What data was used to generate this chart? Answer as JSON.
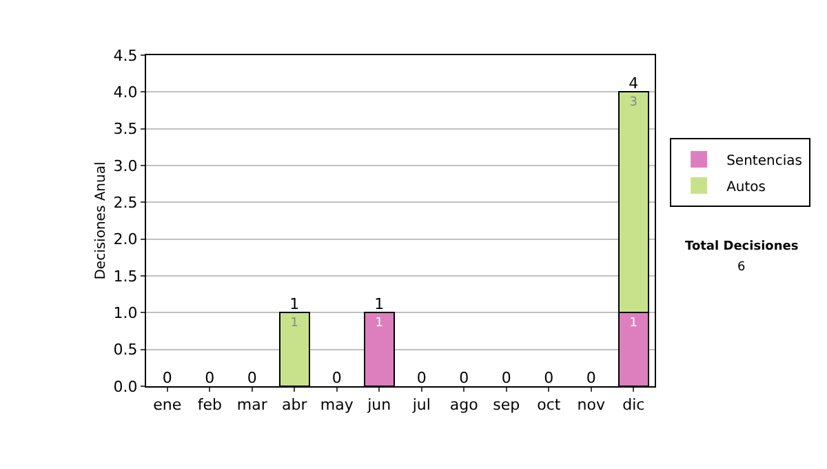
{
  "chart_data": {
    "type": "bar",
    "stacked": true,
    "ylabel": "Decisiones Anual",
    "categories": [
      "ene",
      "feb",
      "mar",
      "abr",
      "may",
      "jun",
      "jul",
      "ago",
      "sep",
      "oct",
      "nov",
      "dic"
    ],
    "series": [
      {
        "name": "Sentencias",
        "color": "#dd7fbf",
        "values": [
          0,
          0,
          0,
          0,
          0,
          1,
          0,
          0,
          0,
          0,
          0,
          1
        ],
        "value_labels": [
          null,
          null,
          null,
          null,
          null,
          "1",
          null,
          null,
          null,
          null,
          null,
          "1"
        ]
      },
      {
        "name": "Autos",
        "color": "#c8e28c",
        "values": [
          0,
          0,
          0,
          1,
          0,
          0,
          0,
          0,
          0,
          0,
          0,
          3
        ],
        "value_labels": [
          null,
          null,
          null,
          "1",
          null,
          null,
          null,
          null,
          null,
          null,
          null,
          "3"
        ]
      }
    ],
    "totals": [
      "0",
      "0",
      "0",
      "1",
      "0",
      "1",
      "0",
      "0",
      "0",
      "0",
      "0",
      "4"
    ],
    "ylim": [
      0,
      4.5
    ],
    "yticks": [
      {
        "value": 0,
        "label": "0.0"
      },
      {
        "value": 0.5,
        "label": "0.5"
      },
      {
        "value": 1,
        "label": "1.0"
      },
      {
        "value": 1.5,
        "label": "1.5"
      },
      {
        "value": 2,
        "label": "2.0"
      },
      {
        "value": 2.5,
        "label": "2.5"
      },
      {
        "value": 3,
        "label": "3.0"
      },
      {
        "value": 3.5,
        "label": "3.5"
      },
      {
        "value": 4,
        "label": "4.0"
      },
      {
        "value": 4.5,
        "label": "4.5"
      }
    ],
    "grid": "y",
    "legend": "right",
    "annotations": [
      "Total Decisiones",
      "6"
    ]
  }
}
